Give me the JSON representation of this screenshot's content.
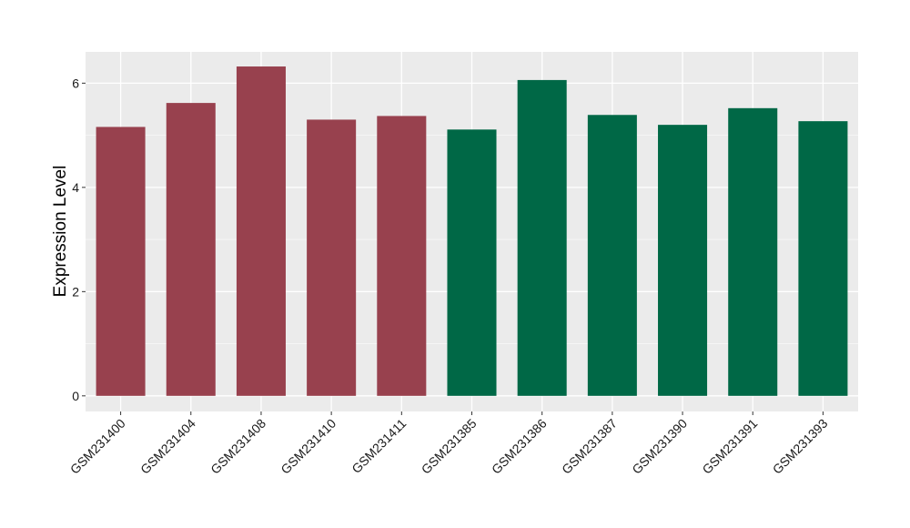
{
  "chart_data": {
    "type": "bar",
    "title": "",
    "xlabel": "",
    "ylabel": "Expression Level",
    "categories": [
      "GSM231400",
      "GSM231404",
      "GSM231408",
      "GSM231410",
      "GSM231411",
      "GSM231385",
      "GSM231386",
      "GSM231387",
      "GSM231390",
      "GSM231391",
      "GSM231393"
    ],
    "values": [
      5.16,
      5.62,
      6.32,
      5.3,
      5.37,
      5.11,
      6.06,
      5.39,
      5.2,
      5.52,
      5.27
    ],
    "bar_colors": [
      "#98414E",
      "#98414E",
      "#98414E",
      "#98414E",
      "#98414E",
      "#006846",
      "#006846",
      "#006846",
      "#006846",
      "#006846",
      "#006846"
    ],
    "ylim": [
      -0.3,
      6.6
    ],
    "yticks": [
      0,
      2,
      4,
      6
    ],
    "ytick_labels": [
      "0",
      "2",
      "4",
      "6"
    ],
    "grid": true,
    "legend": "none",
    "colors": {
      "panel_background": "#EBEBEB",
      "gridline": "#FFFFFF",
      "group_1": "#98414E",
      "group_2": "#006846"
    }
  }
}
